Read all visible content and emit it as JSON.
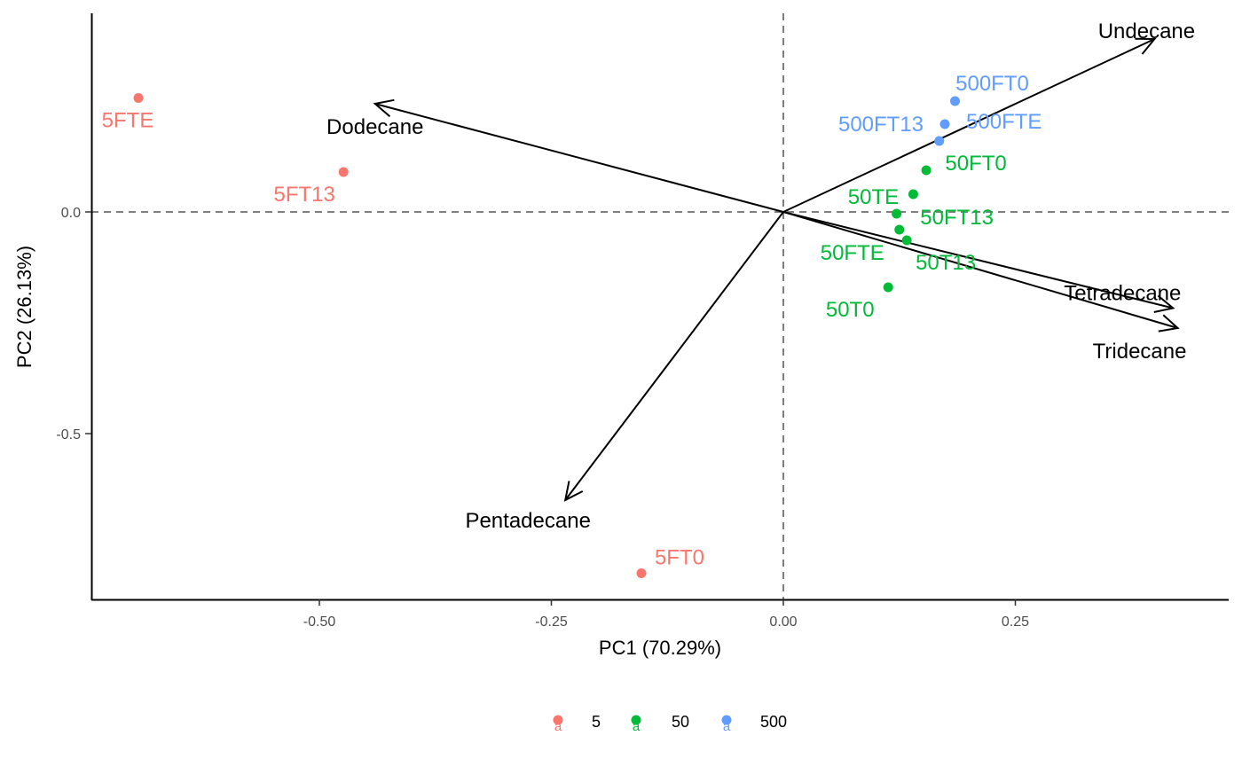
{
  "chart_data": {
    "type": "scatter",
    "subtype": "pca-biplot",
    "xlabel": "PC1 (70.29%)",
    "ylabel": "PC2 (26.13%)",
    "xlim": [
      -0.75,
      0.48
    ],
    "ylim": [
      -0.875,
      0.45
    ],
    "xticks": [
      -0.5,
      -0.25,
      0.0,
      0.25
    ],
    "xtick_labels": [
      "-0.50",
      "-0.25",
      "0.00",
      "0.25"
    ],
    "yticks": [
      -0.5,
      0.0
    ],
    "ytick_labels": [
      "-0.5",
      "0.0"
    ],
    "grid": false,
    "reference_lines": {
      "x": 0,
      "y": 0,
      "style": "dashed",
      "color": "#7f7f7f"
    },
    "legend": {
      "position": "bottom",
      "entries": [
        {
          "label": "5",
          "color": "#F8766D"
        },
        {
          "label": "50",
          "color": "#00BA38"
        },
        {
          "label": "500",
          "color": "#619CFF"
        }
      ]
    },
    "series": [
      {
        "name": "5",
        "color": "#F8766D",
        "points": [
          {
            "label": "5FTE",
            "x": -0.695,
            "y": 0.257
          },
          {
            "label": "5FT13",
            "x": -0.474,
            "y": 0.09
          },
          {
            "label": "5FT0",
            "x": -0.153,
            "y": -0.815
          }
        ]
      },
      {
        "name": "50",
        "color": "#00BA38",
        "points": [
          {
            "label": "50FT0",
            "x": 0.154,
            "y": 0.094
          },
          {
            "label": "50TE",
            "x": 0.14,
            "y": 0.04
          },
          {
            "label": "50FT13",
            "x": 0.122,
            "y": -0.004
          },
          {
            "label": "50FTE",
            "x": 0.125,
            "y": -0.04
          },
          {
            "label": "50T13",
            "x": 0.133,
            "y": -0.064
          },
          {
            "label": "50T0",
            "x": 0.113,
            "y": -0.17
          }
        ]
      },
      {
        "name": "500",
        "color": "#619CFF",
        "points": [
          {
            "label": "500FT0",
            "x": 0.185,
            "y": 0.25
          },
          {
            "label": "500FT13",
            "x": 0.174,
            "y": 0.198
          },
          {
            "label": "500FTE",
            "x": 0.168,
            "y": 0.16
          }
        ]
      }
    ],
    "loadings": [
      {
        "label": "Undecane",
        "x": 0.4,
        "y": 0.39
      },
      {
        "label": "Dodecane",
        "x": -0.44,
        "y": 0.244
      },
      {
        "label": "Tetradecane",
        "x": 0.42,
        "y": -0.217
      },
      {
        "label": "Tridecane",
        "x": 0.425,
        "y": -0.262
      },
      {
        "label": "Pentadecane",
        "x": -0.235,
        "y": -0.65
      }
    ]
  }
}
